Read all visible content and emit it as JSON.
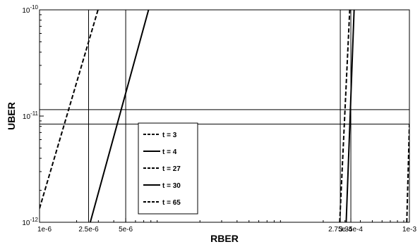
{
  "chart_data": {
    "type": "line",
    "xlabel": "RBER",
    "ylabel": "UBER",
    "xscale": "log",
    "yscale": "log",
    "xlim": [
      1e-06,
      0.001
    ],
    "ylim": [
      1e-12,
      1e-10
    ],
    "x_ticks": [
      {
        "value": 1e-06,
        "label": "1e-6"
      },
      {
        "value": 2.5e-06,
        "label": "2.5e-6"
      },
      {
        "value": 5e-06,
        "label": "5e-6"
      },
      {
        "value": 0.000275,
        "label": "2.75e-4"
      },
      {
        "value": 0.000335,
        "label": "3.35e-4"
      },
      {
        "value": 0.001,
        "label": "1e-3"
      }
    ],
    "y_ticks": [
      {
        "value": 1e-12,
        "label": "10^-12",
        "base": "10",
        "exp": "-12"
      },
      {
        "value": 1e-11,
        "label": "10^-11",
        "base": "10",
        "exp": "-11"
      },
      {
        "value": 1e-10,
        "label": "10^-10",
        "base": "10",
        "exp": "-10"
      }
    ],
    "reference_lines": {
      "vertical": [
        2.5e-06,
        5e-06,
        0.000275,
        0.000335
      ],
      "horizontal": [
        8.4e-12,
        1.15e-11
      ]
    },
    "legend_position": "center-left",
    "series": [
      {
        "name": "t = 3",
        "style": "dashed",
        "x": [
          1e-06,
          2.98e-06
        ],
        "y": [
          1.35e-12,
          1e-10
        ]
      },
      {
        "name": "t = 4",
        "style": "solid",
        "x": [
          2.58e-06,
          7.66e-06
        ],
        "y": [
          1e-12,
          1e-10
        ]
      },
      {
        "name": "t = 27",
        "style": "dashed",
        "x": [
          0.000272,
          0.000328
        ],
        "y": [
          1e-12,
          1e-10
        ]
      },
      {
        "name": "t = 30",
        "style": "solid",
        "x": [
          0.000307,
          0.000356
        ],
        "y": [
          1e-12,
          1e-10
        ]
      },
      {
        "name": "t = 65",
        "style": "dashed",
        "x": [
          0.000952,
          0.001
        ],
        "y": [
          1e-12,
          8.4e-12
        ]
      }
    ]
  }
}
